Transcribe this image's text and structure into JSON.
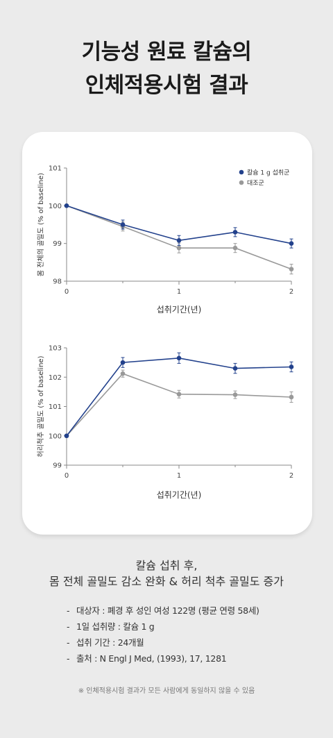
{
  "header": {
    "title_line1": "기능성 원료 칼슘의",
    "title_line2": "인체적용시험 결과"
  },
  "chart_data": [
    {
      "type": "line",
      "title": "",
      "xlabel": "섭취기간(년)",
      "ylabel": "몸 전체의 골밀도 (% of baseline)",
      "xlim": [
        0,
        2
      ],
      "ylim": [
        98,
        101
      ],
      "xticks": [
        "0",
        "1",
        "2"
      ],
      "yticks": [
        "98",
        "99",
        "100",
        "101"
      ],
      "legend_position": "top-right",
      "grid": false,
      "series": [
        {
          "name": "칼슘 1 g 섭취군",
          "color": "#22418c",
          "x": [
            0,
            0.5,
            1,
            1.5,
            2
          ],
          "y": [
            100.0,
            99.5,
            99.08,
            99.3,
            99.0
          ],
          "err": [
            0,
            0.12,
            0.13,
            0.12,
            0.12
          ]
        },
        {
          "name": "대조군",
          "color": "#999999",
          "x": [
            0,
            0.5,
            1,
            1.5,
            2
          ],
          "y": [
            100.0,
            99.45,
            98.88,
            98.88,
            98.32
          ],
          "err": [
            0,
            0.12,
            0.13,
            0.12,
            0.13
          ]
        }
      ]
    },
    {
      "type": "line",
      "title": "",
      "xlabel": "섭취기간(년)",
      "ylabel": "허리척추 골밀도 (% of baseline)",
      "xlim": [
        0,
        2
      ],
      "ylim": [
        99,
        103
      ],
      "xticks": [
        "0",
        "1",
        "2"
      ],
      "yticks": [
        "99",
        "100",
        "101",
        "102",
        "103"
      ],
      "grid": false,
      "series": [
        {
          "name": "칼슘 1 g 섭취군",
          "color": "#22418c",
          "x": [
            0,
            0.5,
            1,
            1.5,
            2
          ],
          "y": [
            100.0,
            102.5,
            102.65,
            102.3,
            102.35
          ],
          "err": [
            0,
            0.17,
            0.18,
            0.17,
            0.17
          ]
        },
        {
          "name": "대조군",
          "color": "#999999",
          "x": [
            0,
            0.5,
            1,
            1.5,
            2
          ],
          "y": [
            100.0,
            102.12,
            101.42,
            101.4,
            101.32
          ],
          "err": [
            0,
            0.12,
            0.13,
            0.13,
            0.18
          ]
        }
      ]
    }
  ],
  "summary": {
    "line1": "칼슘 섭취 후,",
    "line2": "몸 전체 골밀도 감소 완화 & 허리 척추 골밀도 증가"
  },
  "details": [
    "대상자 : 폐경 후 성인 여성 122명 (평균 연령 58세)",
    "1일 섭취량 : 칼슘 1 g",
    "섭취 기간 : 24개월",
    "출처 : N Engl J Med, (1993), 17, 1281"
  ],
  "footnote": "※ 인체적용시험 결과가 모든 사람에게 동일하지 않을 수 있음"
}
